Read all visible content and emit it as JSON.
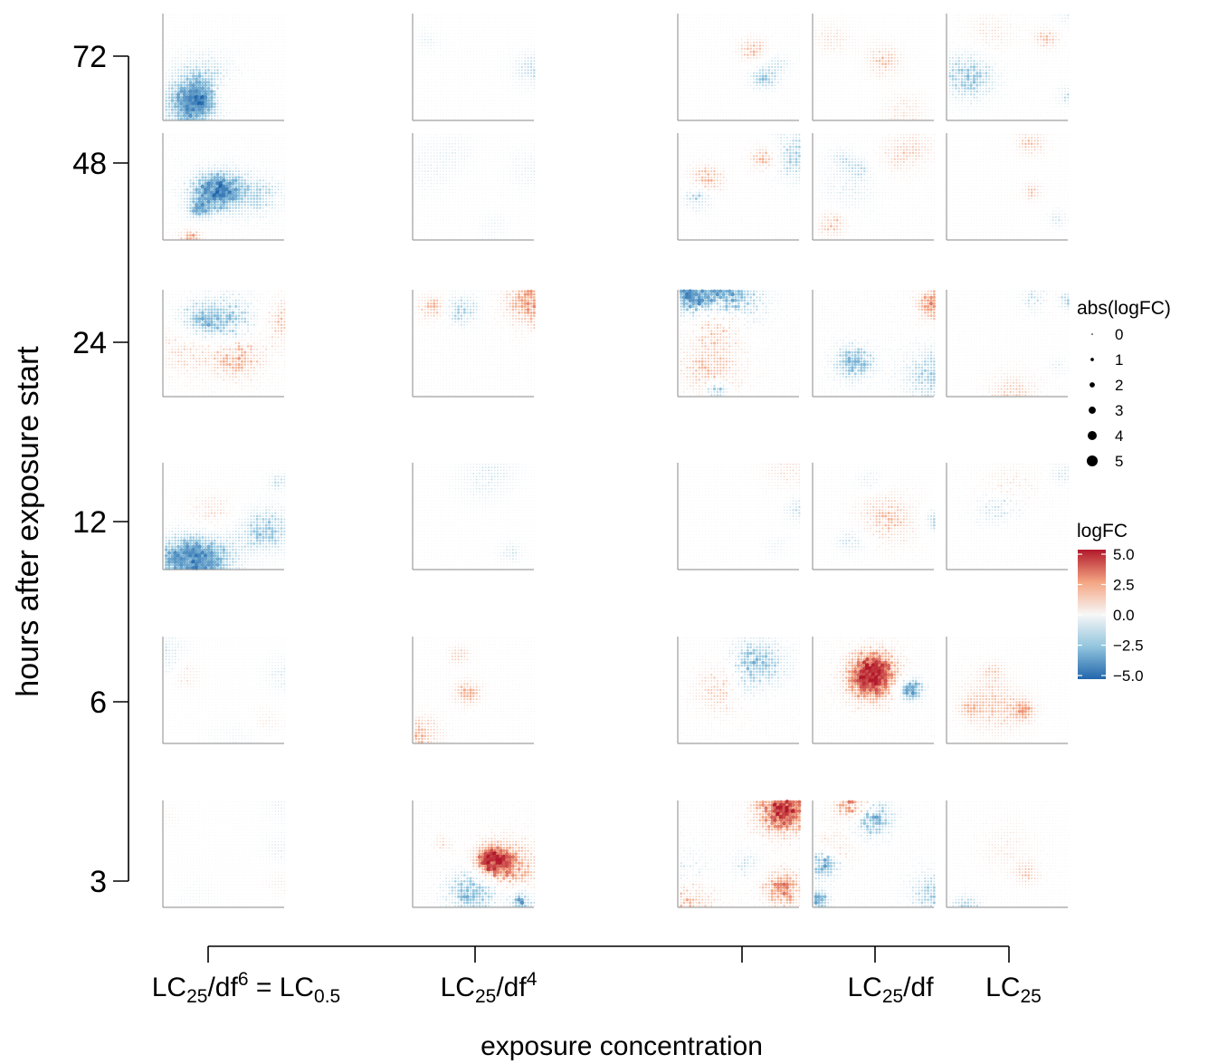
{
  "chart_data": {
    "type": "scatter",
    "description_grid": "small-multiples of spatial logFC maps",
    "y_axis": {
      "title": "hours after exposure start",
      "ticks": [
        "72",
        "48",
        "24",
        "12",
        "6",
        "3"
      ]
    },
    "x_axis": {
      "title": "exposure concentration",
      "ticks": [
        {
          "main": "LC",
          "sub": "25",
          "rest": "/df",
          "sup": "6",
          "suffix": " = LC",
          "sub2": "0.5"
        },
        {
          "main": "LC",
          "sub": "25",
          "rest": "/df",
          "sup": "4",
          "suffix": "",
          "sub2": ""
        },
        {
          "main": "",
          "sub": "",
          "rest": "",
          "sup": "",
          "suffix": "",
          "sub2": ""
        },
        {
          "main": "LC",
          "sub": "25",
          "rest": "/df",
          "sup": "",
          "suffix": "",
          "sub2": ""
        },
        {
          "main": "LC",
          "sub": "25",
          "rest": "",
          "sup": "",
          "suffix": "",
          "sub2": ""
        }
      ]
    },
    "rows": [
      "72",
      "48",
      "24",
      "12",
      "6",
      "3"
    ],
    "columns": [
      "LC25/df^6 = LC0.5",
      "LC25/df^4",
      "",
      "LC25/df",
      "LC25"
    ],
    "panel_intensity": [
      [
        0.55,
        0.35,
        0.55,
        0.35,
        0.5
      ],
      [
        0.75,
        0.35,
        0.5,
        0.55,
        0.4
      ],
      [
        0.8,
        0.7,
        0.85,
        0.85,
        0.5
      ],
      [
        0.5,
        0.25,
        0.4,
        0.45,
        0.5
      ],
      [
        0.25,
        0.5,
        0.7,
        0.9,
        0.45
      ],
      [
        0.2,
        0.85,
        0.9,
        0.9,
        0.5
      ]
    ],
    "legend_size": {
      "title": "abs(logFC)",
      "labels": [
        "0",
        "1",
        "2",
        "3",
        "4",
        "5"
      ]
    },
    "legend_color": {
      "title": "logFC",
      "labels": [
        "5.0",
        "2.5",
        "0.0",
        "−2.5",
        "−5.0"
      ],
      "range": [
        -5,
        5
      ],
      "colors": {
        "high": "#b2182b",
        "mid_high": "#f4a582",
        "mid": "#f7f7f7",
        "mid_low": "#92c5de",
        "low": "#2166ac"
      }
    }
  }
}
